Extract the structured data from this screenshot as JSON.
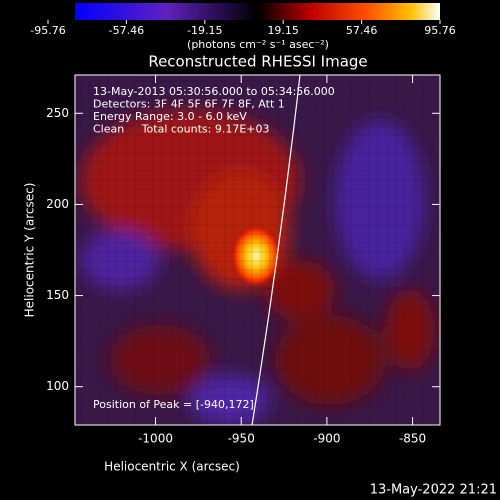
{
  "chart_data": {
    "type": "image",
    "title": "Reconstructed RHESSI Image",
    "colorbar": {
      "clim": [
        -95.76,
        95.76
      ],
      "ticks": [
        -95.76,
        -57.46,
        -19.15,
        19.15,
        57.46,
        95.76
      ],
      "unit_label": "(photons cm⁻² s⁻¹ asec⁻²)"
    },
    "xlabel": "Heliocentric X (arcsec)",
    "ylabel": "Heliocentric Y (arcsec)",
    "xlim": [
      -1047,
      -834
    ],
    "xticks": [
      -1000,
      -950,
      -900,
      -850
    ],
    "ylim": [
      79,
      271
    ],
    "yticks": [
      100,
      150,
      200,
      250
    ],
    "annotations": [
      "13-May-2013 05:30:56.000 to 05:34:56.000",
      "Detectors: 3F 4F 5F 6F 7F 8F, Att 1",
      "Energy Range: 3.0 - 6.0 keV",
      "Clean     Total counts: 9.17E+03"
    ],
    "peak_label": "Position of Peak = [-940,172]",
    "timestamp": "13-May-2022 21:21"
  }
}
